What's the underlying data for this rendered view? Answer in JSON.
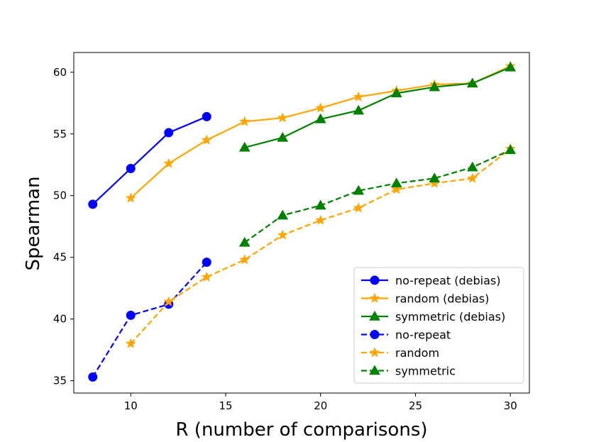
{
  "chart_data": {
    "type": "line",
    "title": "",
    "xlabel": "R (number of comparisons)",
    "ylabel": "Spearman",
    "xlim": [
      7,
      31
    ],
    "ylim": [
      34,
      61.6
    ],
    "xticks": [
      10,
      15,
      20,
      25,
      30
    ],
    "yticks": [
      35,
      40,
      45,
      50,
      55,
      60
    ],
    "grid": false,
    "legend_position": "lower-right",
    "series": [
      {
        "name": "no-repeat (debias)",
        "color": "#0000ff",
        "style": "solid",
        "marker": "circle",
        "x": [
          8,
          10,
          12,
          14
        ],
        "y": [
          49.3,
          52.2,
          55.1,
          56.4
        ]
      },
      {
        "name": "random (debias)",
        "color": "#ffa500",
        "style": "solid",
        "marker": "star",
        "x": [
          10,
          12,
          14,
          16,
          18,
          20,
          22,
          24,
          26,
          28,
          30
        ],
        "y": [
          49.8,
          52.6,
          54.5,
          56.0,
          56.3,
          57.1,
          58.0,
          58.5,
          59.0,
          59.1,
          60.5
        ]
      },
      {
        "name": "symmetric (debias)",
        "color": "#008000",
        "style": "solid",
        "marker": "triangle",
        "x": [
          16,
          18,
          20,
          22,
          24,
          26,
          28,
          30
        ],
        "y": [
          53.9,
          54.7,
          56.2,
          56.9,
          58.3,
          58.8,
          59.1,
          60.4
        ]
      },
      {
        "name": "no-repeat",
        "color": "#0000ff",
        "style": "dashed",
        "marker": "circle",
        "x": [
          8,
          10,
          12,
          14
        ],
        "y": [
          35.3,
          40.3,
          41.2,
          44.6
        ]
      },
      {
        "name": "random",
        "color": "#ffa500",
        "style": "dashed",
        "marker": "star",
        "x": [
          10,
          12,
          14,
          16,
          18,
          20,
          22,
          24,
          26,
          28,
          30
        ],
        "y": [
          38.0,
          41.4,
          43.4,
          44.8,
          46.8,
          48.0,
          49.0,
          50.5,
          51.0,
          51.4,
          53.8
        ]
      },
      {
        "name": "symmetric",
        "color": "#008000",
        "style": "dashed",
        "marker": "triangle",
        "x": [
          16,
          18,
          20,
          22,
          24,
          26,
          28,
          30
        ],
        "y": [
          46.2,
          48.4,
          49.2,
          50.4,
          51.0,
          51.4,
          52.3,
          53.7
        ]
      }
    ]
  }
}
